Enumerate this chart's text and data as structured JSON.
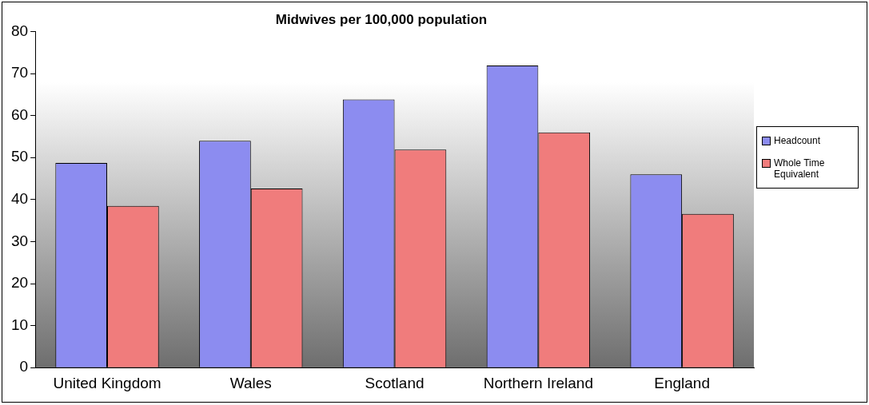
{
  "chart_data": {
    "type": "bar",
    "title": "Midwives per 100,000 population",
    "categories": [
      "United Kingdom",
      "Wales",
      "Scotland",
      "Northern Ireland",
      "England"
    ],
    "series": [
      {
        "name": "Headcount",
        "color": "#8c8cf0",
        "values": [
          48.7,
          54.0,
          63.8,
          71.9,
          46.0
        ]
      },
      {
        "name": "Whole Time Equivalent",
        "color": "#f07c7c",
        "values": [
          38.5,
          42.6,
          51.9,
          56.0,
          36.6
        ]
      }
    ],
    "ylim": [
      0,
      80
    ],
    "yticks": [
      0,
      10,
      20,
      30,
      40,
      50,
      60,
      70,
      80
    ],
    "grid": false,
    "legend": "right"
  }
}
